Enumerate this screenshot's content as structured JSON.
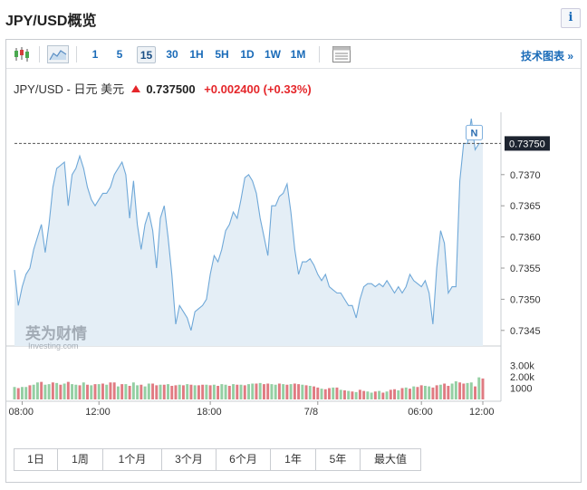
{
  "page_title": "JPY/USD概览",
  "info_label": "i",
  "toolbar": {
    "intervals": [
      "1",
      "5",
      "15",
      "30",
      "1H",
      "5H",
      "1D",
      "1W",
      "1M"
    ],
    "active_interval": "15",
    "tech_chart_link": "技术图表 »"
  },
  "quote": {
    "name": "JPY/USD - 日元 美元",
    "price": "0.737500",
    "change": "+0.002400",
    "change_pct": "(+0.33%)",
    "direction": "up",
    "up_color": "#e5262a"
  },
  "watermark": {
    "brand": "英为财情",
    "sub": "Investing.com"
  },
  "chart_data": {
    "type": "area",
    "price_label": "0.73750",
    "marker_label": "N",
    "ylim": [
      0.73425,
      0.738
    ],
    "y_ticks": [
      "0.7370",
      "0.7365",
      "0.7360",
      "0.7355",
      "0.7350",
      "0.7345"
    ],
    "y_tick_values": [
      0.737,
      0.7365,
      0.736,
      0.7355,
      0.735,
      0.7345
    ],
    "x_tick_labels": [
      "08:00",
      "12:00",
      "18:00",
      "7/8",
      "06:00",
      "12:00"
    ],
    "volume_ticks": [
      "3.00k",
      "2.00k",
      "1000"
    ],
    "volume_tick_values": [
      3000,
      2000,
      1000
    ],
    "line_color": "#6fa8d8",
    "fill_color": "#e4eef6",
    "vol_up_color": "#94cfa3",
    "vol_down_color": "#e07b82",
    "prices": [
      0.73547,
      0.7349,
      0.7352,
      0.7354,
      0.7355,
      0.7358,
      0.736,
      0.7362,
      0.73575,
      0.7362,
      0.7368,
      0.7371,
      0.73715,
      0.7372,
      0.7365,
      0.737,
      0.7371,
      0.7373,
      0.7371,
      0.7368,
      0.7366,
      0.7365,
      0.7366,
      0.7367,
      0.7367,
      0.7368,
      0.737,
      0.7371,
      0.7372,
      0.737,
      0.7363,
      0.7369,
      0.7362,
      0.7358,
      0.7362,
      0.7364,
      0.7361,
      0.7355,
      0.7363,
      0.7365,
      0.736,
      0.7354,
      0.7346,
      0.7349,
      0.7348,
      0.7347,
      0.7345,
      0.7348,
      0.73485,
      0.7349,
      0.735,
      0.7354,
      0.7357,
      0.7356,
      0.7358,
      0.7361,
      0.7362,
      0.7364,
      0.7363,
      0.7366,
      0.73695,
      0.737,
      0.7369,
      0.7367,
      0.7363,
      0.736,
      0.7357,
      0.7365,
      0.7365,
      0.73665,
      0.7367,
      0.73685,
      0.7364,
      0.7358,
      0.7354,
      0.7356,
      0.7356,
      0.73565,
      0.73555,
      0.7354,
      0.7353,
      0.7354,
      0.7352,
      0.73515,
      0.7351,
      0.7351,
      0.735,
      0.7349,
      0.7349,
      0.7347,
      0.735,
      0.7352,
      0.73525,
      0.73525,
      0.7352,
      0.73525,
      0.7352,
      0.7353,
      0.7352,
      0.7351,
      0.7352,
      0.7351,
      0.7352,
      0.7354,
      0.7353,
      0.73525,
      0.7352,
      0.7353,
      0.7351,
      0.7346,
      0.7355,
      0.7361,
      0.7359,
      0.7351,
      0.7352,
      0.7352,
      0.7369,
      0.7375,
      0.7375,
      0.7379,
      0.7374,
      0.7375,
      0.7375
    ],
    "volumes": [
      1100,
      1000,
      1100,
      1100,
      1250,
      1300,
      1500,
      1550,
      1300,
      1350,
      1500,
      1450,
      1300,
      1400,
      1550,
      1350,
      1300,
      1250,
      1500,
      1300,
      1250,
      1350,
      1350,
      1400,
      1300,
      1500,
      1500,
      1150,
      1350,
      1350,
      1200,
      1500,
      1250,
      1300,
      1150,
      1400,
      1400,
      1250,
      1300,
      1300,
      1350,
      1200,
      1250,
      1300,
      1250,
      1350,
      1300,
      1250,
      1250,
      1300,
      1300,
      1250,
      1300,
      1200,
      1350,
      1300,
      1200,
      1350,
      1300,
      1300,
      1250,
      1350,
      1400,
      1400,
      1450,
      1350,
      1400,
      1350,
      1300,
      1400,
      1350,
      1300,
      1350,
      1400,
      1350,
      1300,
      1250,
      1200,
      1150,
      1050,
      950,
      900,
      1000,
      1050,
      1050,
      850,
      800,
      750,
      700,
      650,
      850,
      750,
      700,
      600,
      700,
      750,
      600,
      700,
      850,
      900,
      800,
      1000,
      1050,
      950,
      1150,
      1100,
      1250,
      1200,
      1150,
      1050,
      1250,
      1300,
      1400,
      1200,
      1400,
      1600,
      1500,
      1400,
      1450,
      1500,
      1150,
      1950,
      1850
    ],
    "volume_up": [
      true,
      false,
      true,
      true,
      false,
      true,
      true,
      false,
      true,
      true,
      false,
      true,
      false,
      true,
      false,
      true,
      true,
      false,
      true,
      false,
      true,
      false,
      true,
      false,
      true,
      false,
      false,
      true,
      false,
      true,
      false,
      true,
      true,
      false,
      true,
      true,
      false,
      false,
      true,
      false,
      true,
      false,
      false,
      true,
      false,
      true,
      false,
      true,
      false,
      false,
      true,
      false,
      true,
      false,
      true,
      true,
      false,
      true,
      false,
      true,
      false,
      true,
      true,
      false,
      true,
      false,
      false,
      true,
      true,
      false,
      true,
      false,
      true,
      false,
      false,
      true,
      false,
      true,
      false,
      false,
      true,
      false,
      false,
      true,
      false,
      true,
      false,
      true,
      false,
      true,
      false,
      false,
      true,
      true,
      false,
      true,
      false,
      true,
      false,
      false,
      true,
      false,
      true,
      false,
      true,
      false,
      false,
      true,
      true,
      false,
      false,
      true,
      false,
      false,
      true,
      true,
      false,
      false,
      true,
      true,
      false,
      true,
      false
    ],
    "max_volume": 3600
  },
  "ranges": [
    "1日",
    "1周",
    "1个月",
    "3个月",
    "6个月",
    "1年",
    "5年",
    "最大值"
  ]
}
